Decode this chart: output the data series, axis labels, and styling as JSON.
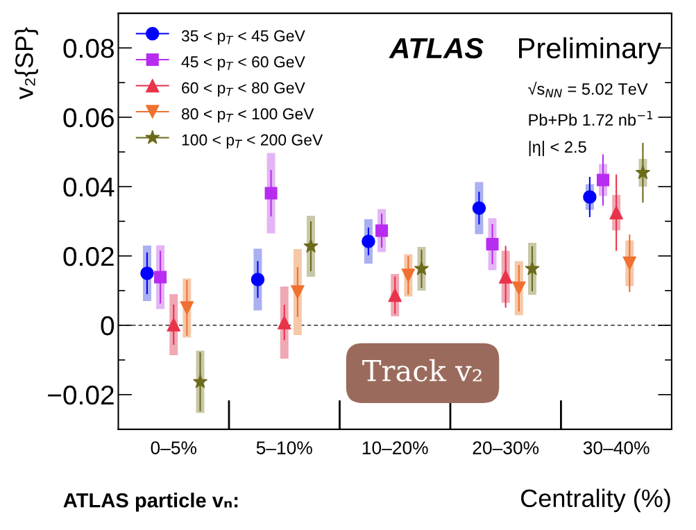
{
  "chart_data": {
    "type": "scatter",
    "xlabel": "Centrality (%)",
    "ylabel": "v₂{SP}",
    "categories": [
      "0–5%",
      "5–10%",
      "10–20%",
      "20–30%",
      "30–40%"
    ],
    "ylim": [
      -0.03,
      0.09
    ],
    "yticks": [
      {
        "value": -0.03,
        "label": null
      },
      {
        "value": -0.02,
        "label": "−0.02"
      },
      {
        "value": -0.01,
        "label": null
      },
      {
        "value": 0,
        "label": "0"
      },
      {
        "value": 0.01,
        "label": null
      },
      {
        "value": 0.02,
        "label": "0.02"
      },
      {
        "value": 0.03,
        "label": null
      },
      {
        "value": 0.04,
        "label": "0.04"
      },
      {
        "value": 0.05,
        "label": null
      },
      {
        "value": 0.06,
        "label": "0.06"
      },
      {
        "value": 0.07,
        "label": null
      },
      {
        "value": 0.08,
        "label": "0.08"
      }
    ],
    "grid": false,
    "legend": "top left",
    "ref_lines": [
      {
        "axis": "y",
        "value": 0,
        "color": "#000000",
        "line_style": "dashed"
      }
    ],
    "annotations": [
      "ATLAS",
      "Preliminary",
      "√s$_{NN}$ = 5.02 TeV",
      "Pb+Pb 1.72 nb$^{−1}$",
      "|η| < 2.5",
      "Track v₂",
      "ATLAS particle vₙ:"
    ],
    "series": [
      {
        "type": "bar",
        "color": "#aab0f0",
        "base": [
          0.007,
          0.0043,
          0.0178,
          0.0263,
          0.0333
        ],
        "values": [
          0.016,
          0.0178,
          0.0128,
          0.015,
          0.0074
        ]
      },
      {
        "type": "bar",
        "color": "#e3b5f5",
        "base": [
          0.0047,
          0.0265,
          0.0211,
          0.0159,
          0.0373
        ],
        "values": [
          0.0184,
          0.0232,
          0.0124,
          0.015,
          0.0092
        ]
      },
      {
        "type": "bar",
        "color": "#f0a8b5",
        "base": [
          -0.0086,
          -0.0096,
          0.0026,
          0.0065,
          0.0274
        ],
        "values": [
          0.0176,
          0.0208,
          0.0122,
          0.015,
          0.0102
        ]
      },
      {
        "type": "bar",
        "color": "#f5c8a8",
        "base": [
          -0.0035,
          -0.0028,
          0.0083,
          0.0029,
          0.0113
        ],
        "values": [
          0.017,
          0.0248,
          0.0122,
          0.0156,
          0.0132
        ]
      },
      {
        "type": "bar",
        "color": "#c8c8a8",
        "base": [
          -0.0253,
          0.014,
          0.01,
          0.0088,
          0.04
        ],
        "values": [
          0.018,
          0.0176,
          0.0126,
          0.015,
          0.008
        ]
      },
      {
        "name": "35 < p$_{T}$ < 45 GeV",
        "color": "#0000ff",
        "marker": "circle",
        "values": [
          0.015,
          0.0132,
          0.0242,
          0.0338,
          0.037
        ],
        "errors": [
          0.006,
          0.0053,
          0.004,
          0.0047,
          0.0058
        ]
      },
      {
        "name": "45 < p$_{T}$ < 60 GeV",
        "color": "#b72cf0",
        "marker": "square",
        "values": [
          0.0139,
          0.0381,
          0.0273,
          0.0234,
          0.0419
        ],
        "errors": [
          0.0076,
          0.0067,
          0.0049,
          0.0058,
          0.0074
        ]
      },
      {
        "name": "60 < p$_{T}$ < 80 GeV",
        "color": "#e8334a",
        "marker": "triangle",
        "values": [
          0.0002,
          0.0008,
          0.0087,
          0.014,
          0.0325
        ],
        "errors": [
          0.0058,
          0.0051,
          0.0054,
          0.0089,
          0.011
        ]
      },
      {
        "name": "80 < p$_{T}$ < 100 GeV",
        "color": "#f07030",
        "marker": "triangle_down",
        "values": [
          0.005,
          0.0096,
          0.0144,
          0.0107,
          0.0179
        ],
        "errors": [
          0.008,
          0.0072,
          0.0055,
          0.0067,
          0.0083
        ]
      },
      {
        "name": "100 < p$_{T}$ < 200 GeV",
        "color": "#6b6b1a",
        "marker": "star",
        "values": [
          -0.0163,
          0.0228,
          0.0163,
          0.0163,
          0.044
        ],
        "errors": [
          0.0085,
          0.0072,
          0.0055,
          0.0065,
          0.0086
        ]
      }
    ]
  }
}
